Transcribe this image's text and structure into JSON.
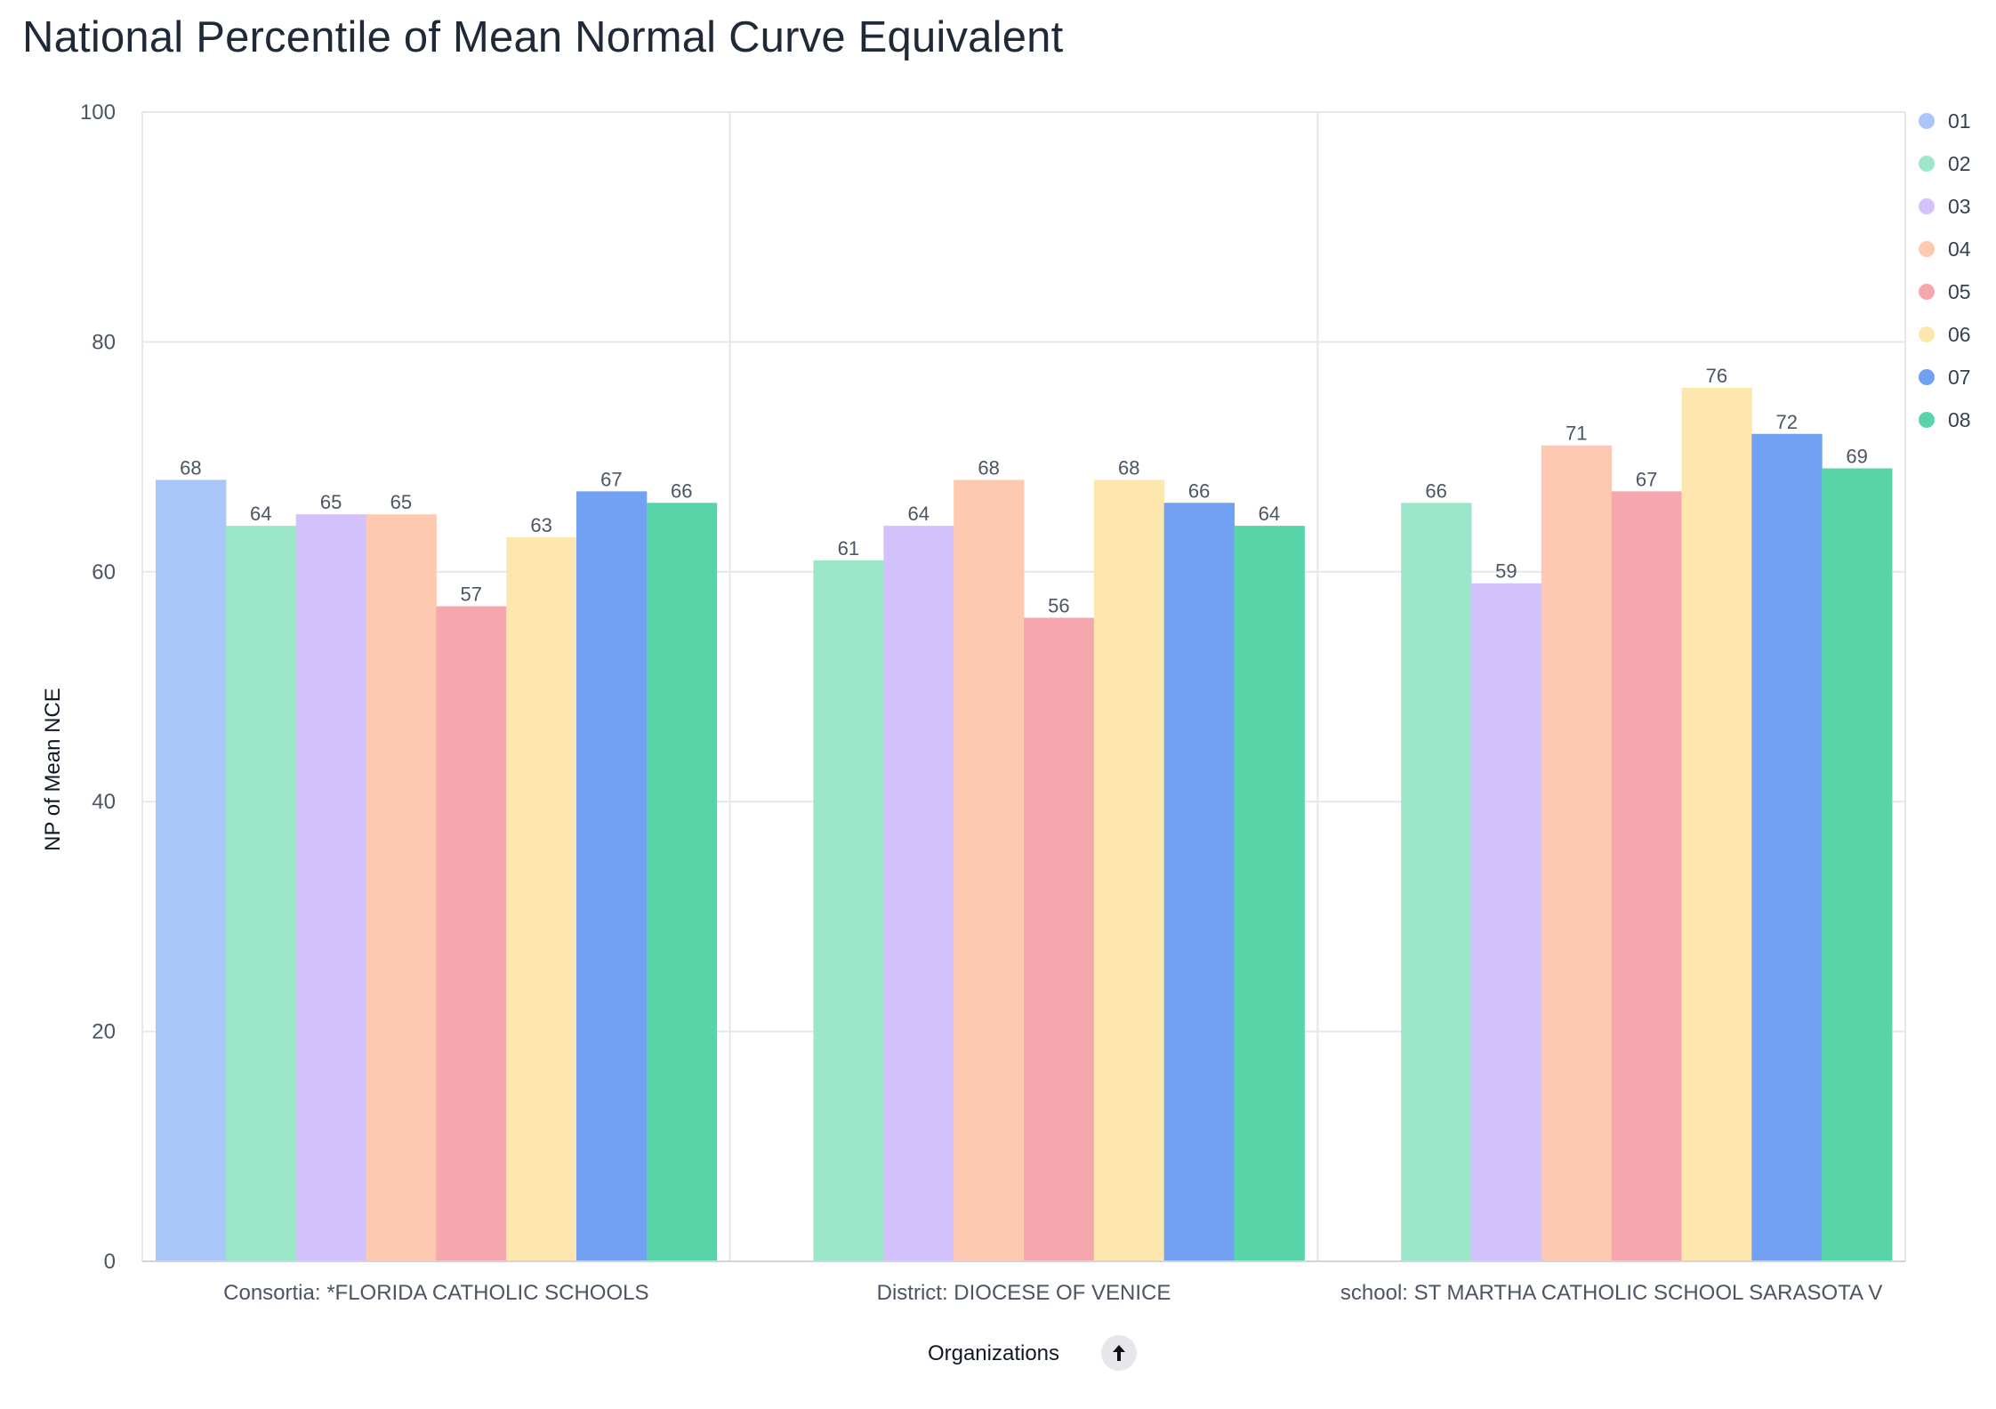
{
  "chart_data": {
    "type": "bar",
    "title": "National Percentile of Mean Normal Curve Equivalent",
    "xlabel": "Organizations",
    "ylabel": "NP of Mean NCE",
    "ylim": [
      0,
      100
    ],
    "yticks": [
      0,
      20,
      40,
      60,
      80,
      100
    ],
    "grid": true,
    "legend_position": "right",
    "categories": [
      "Consortia: *FLORIDA CATHOLIC SCHOOLS",
      "District: DIOCESE OF VENICE",
      "school: ST MARTHA CATHOLIC SCHOOL SARASOTA V"
    ],
    "series": [
      {
        "name": "01",
        "color": "#abc6f8",
        "values": [
          68,
          null,
          null
        ]
      },
      {
        "name": "02",
        "color": "#9ce6ca",
        "values": [
          64,
          61,
          66
        ]
      },
      {
        "name": "03",
        "color": "#d3c1fb",
        "values": [
          65,
          64,
          59
        ]
      },
      {
        "name": "04",
        "color": "#fec9b1",
        "values": [
          65,
          68,
          71
        ]
      },
      {
        "name": "05",
        "color": "#f5a7ad",
        "values": [
          57,
          56,
          67
        ]
      },
      {
        "name": "06",
        "color": "#fde7ae",
        "values": [
          63,
          68,
          76
        ]
      },
      {
        "name": "07",
        "color": "#72a1f4",
        "values": [
          67,
          66,
          72
        ]
      },
      {
        "name": "08",
        "color": "#58d4a9",
        "values": [
          66,
          64,
          69
        ]
      }
    ]
  },
  "controls": {
    "sort_icon": "arrow-up-icon",
    "sort_glyph": "🡑"
  }
}
